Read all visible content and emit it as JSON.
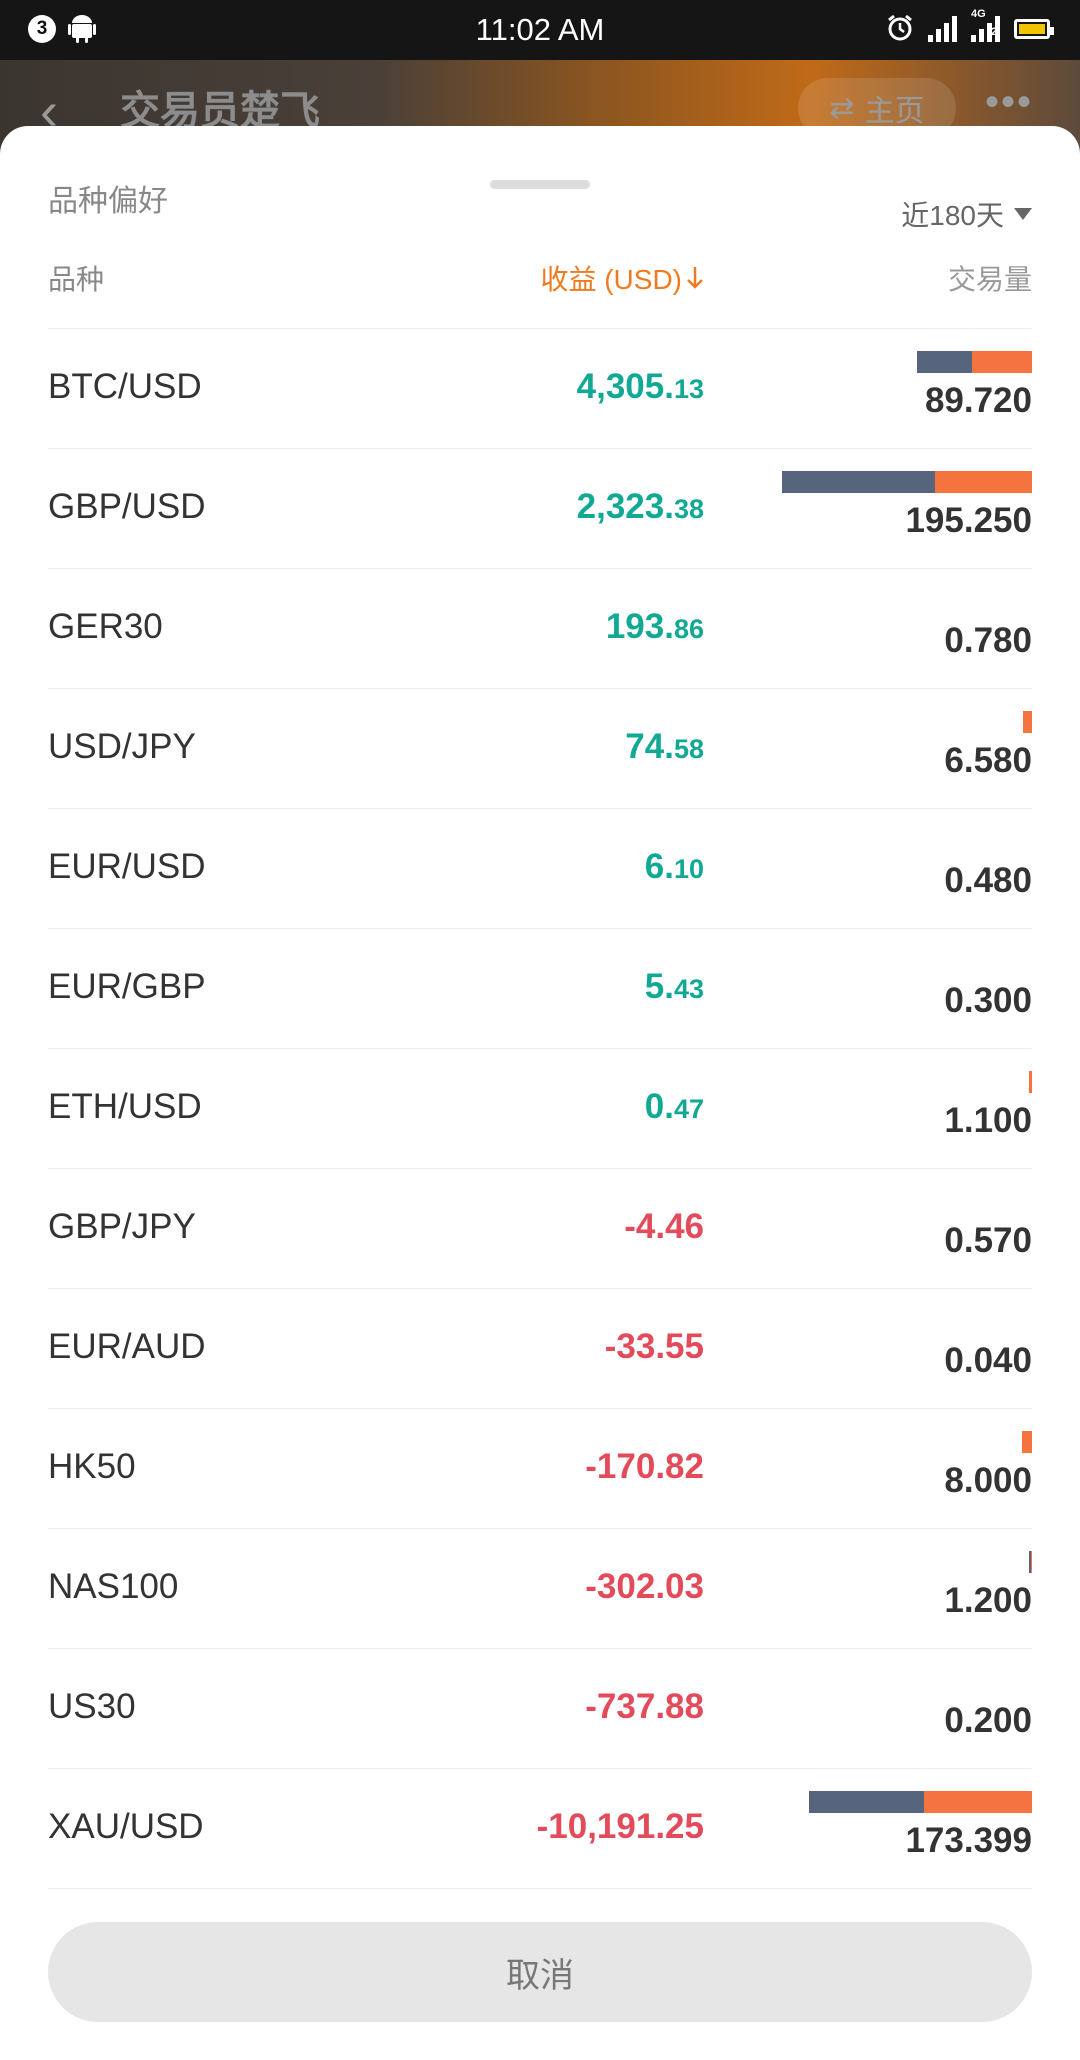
{
  "status_bar": {
    "notification_count": "3",
    "time": "11:02 AM",
    "network": "4G",
    "sim": "2"
  },
  "background_page": {
    "title": "交易员楚飞",
    "home_label": "主页"
  },
  "sheet": {
    "title": "品种偏好",
    "period": "近180天",
    "columns": {
      "instrument": "品种",
      "profit": "收益 (USD)",
      "volume": "交易量"
    },
    "cancel_label": "取消"
  },
  "colors": {
    "positive": "#12a994",
    "negative": "#e34a5a",
    "bar_buy": "#56647e",
    "bar_sell": "#f4733e",
    "accent": "#f07a20"
  },
  "rows": [
    {
      "instrument": "BTC/USD",
      "profit_int": "4,305.",
      "profit_dec": "13",
      "sign": "pos",
      "volume": "89.720",
      "bar_total": 0.46,
      "bar_buy": 0.22
    },
    {
      "instrument": "GBP/USD",
      "profit_int": "2,323.",
      "profit_dec": "38",
      "sign": "pos",
      "volume": "195.250",
      "bar_total": 1.0,
      "bar_buy": 0.61
    },
    {
      "instrument": "GER30",
      "profit_int": "193.",
      "profit_dec": "86",
      "sign": "pos",
      "volume": "0.780",
      "bar_total": 0,
      "bar_buy": 0
    },
    {
      "instrument": "USD/JPY",
      "profit_int": "74.",
      "profit_dec": "58",
      "sign": "pos",
      "volume": "6.580",
      "bar_total": 0.034,
      "bar_buy": 0
    },
    {
      "instrument": "EUR/USD",
      "profit_int": "6.",
      "profit_dec": "10",
      "sign": "pos",
      "volume": "0.480",
      "bar_total": 0,
      "bar_buy": 0
    },
    {
      "instrument": "EUR/GBP",
      "profit_int": "5.",
      "profit_dec": "43",
      "sign": "pos",
      "volume": "0.300",
      "bar_total": 0,
      "bar_buy": 0
    },
    {
      "instrument": "ETH/USD",
      "profit_int": "0.",
      "profit_dec": "47",
      "sign": "pos",
      "volume": "1.100",
      "bar_total": 0.006,
      "bar_buy": 0
    },
    {
      "instrument": "GBP/JPY",
      "profit_int": "-4.46",
      "profit_dec": "",
      "sign": "neg",
      "volume": "0.570",
      "bar_total": 0,
      "bar_buy": 0
    },
    {
      "instrument": "EUR/AUD",
      "profit_int": "-33.55",
      "profit_dec": "",
      "sign": "neg",
      "volume": "0.040",
      "bar_total": 0,
      "bar_buy": 0
    },
    {
      "instrument": "HK50",
      "profit_int": "-170.82",
      "profit_dec": "",
      "sign": "neg",
      "volume": "8.000",
      "bar_total": 0.041,
      "bar_buy": 0
    },
    {
      "instrument": "NAS100",
      "profit_int": "-302.03",
      "profit_dec": "",
      "sign": "neg",
      "volume": "1.200",
      "bar_total": 0.006,
      "bar_buy": 0.006
    },
    {
      "instrument": "US30",
      "profit_int": "-737.88",
      "profit_dec": "",
      "sign": "neg",
      "volume": "0.200",
      "bar_total": 0,
      "bar_buy": 0
    },
    {
      "instrument": "XAU/USD",
      "profit_int": "-10,191.25",
      "profit_dec": "",
      "sign": "neg",
      "volume": "173.399",
      "bar_total": 0.89,
      "bar_buy": 0.46
    }
  ]
}
